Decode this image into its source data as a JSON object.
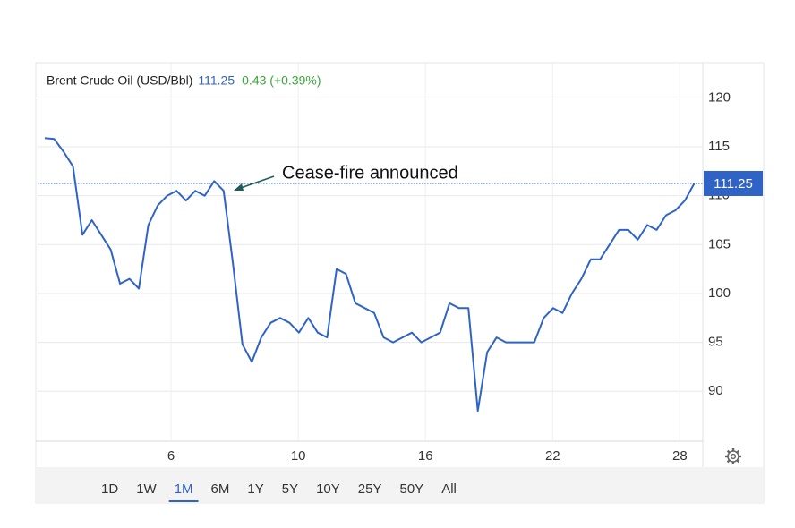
{
  "chart_data": {
    "type": "line",
    "title": "Brent Crude Oil (USD/Bbl)",
    "last_price": 111.25,
    "change": "0.43 (+0.39%)",
    "annotation": "Cease-fire announced",
    "series": [
      {
        "name": "Brent Crude Oil",
        "color": "#2f64c6",
        "values": [
          115.9,
          115.8,
          114.5,
          113,
          106,
          107.5,
          106,
          104.5,
          101,
          101.5,
          100.5,
          107,
          109,
          110,
          110.5,
          109.5,
          110.5,
          110,
          111.5,
          110.5,
          103,
          94.8,
          93,
          95.5,
          97,
          97.5,
          97,
          96,
          97.5,
          96,
          95.5,
          102.5,
          102,
          99,
          98.5,
          98,
          95.5,
          95,
          95.5,
          96,
          95,
          95.5,
          96,
          99,
          98.5,
          98.5,
          88,
          94,
          95.5,
          95,
          95,
          95,
          95,
          97.5,
          98.5,
          98,
          100,
          101.5,
          103.5,
          103.5,
          105,
          106.5,
          106.5,
          105.5,
          107,
          106.5,
          108,
          108.5,
          109.5,
          111.25
        ]
      }
    ],
    "xlim": [
      -0.76,
      69.9
    ],
    "xticks": [
      {
        "value": 13.42,
        "label": "6"
      },
      {
        "value": 26.93,
        "label": "10"
      },
      {
        "value": 40.44,
        "label": "16"
      },
      {
        "value": 53.95,
        "label": "22"
      },
      {
        "value": 67.46,
        "label": "28"
      }
    ],
    "ylim": [
      84.9,
      123.6
    ],
    "yticks": [
      90,
      95,
      100,
      105,
      110,
      115,
      120
    ],
    "grid": true,
    "ranges": [
      "1D",
      "1W",
      "1M",
      "6M",
      "1Y",
      "5Y",
      "10Y",
      "25Y",
      "50Y",
      "All"
    ],
    "selected_range": 2
  }
}
